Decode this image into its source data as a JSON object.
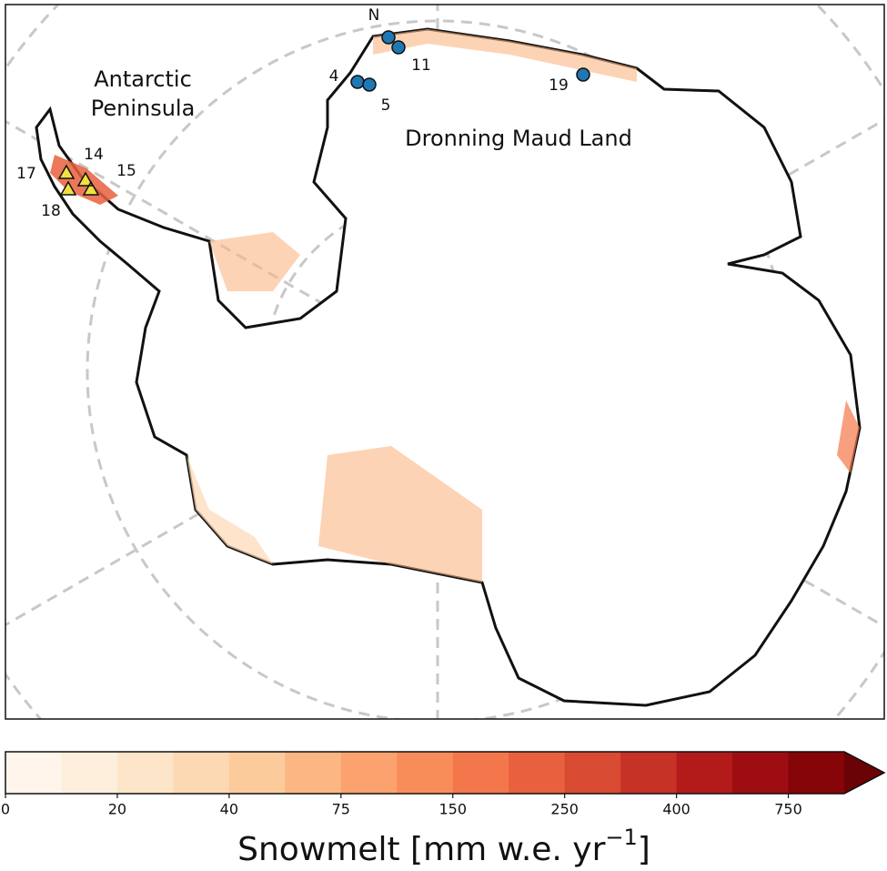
{
  "map": {
    "labels": {
      "peninsula": [
        "Antarctic",
        "Peninsula"
      ],
      "region": "Dronning Maud Land",
      "north": "N"
    },
    "stations": [
      "4",
      "5",
      "11",
      "19",
      "14",
      "15",
      "17",
      "18"
    ]
  },
  "colorbar": {
    "ticks": [
      "0",
      "20",
      "40",
      "75",
      "150",
      "250",
      "400",
      "750"
    ],
    "label": "Snowmelt [mm w.e. yr",
    "label_sup": "−1",
    "label_end": "]",
    "colors": [
      "#fff5eb",
      "#fdefdc",
      "#fde5c9",
      "#fdd9b3",
      "#fccb9c",
      "#fcb684",
      "#fba26f",
      "#f98d5a",
      "#f3774a",
      "#e8603d",
      "#d94a33",
      "#c73226",
      "#b31b1b",
      "#9e0d12",
      "#850509"
    ],
    "extend_color": "#6b0206"
  }
}
